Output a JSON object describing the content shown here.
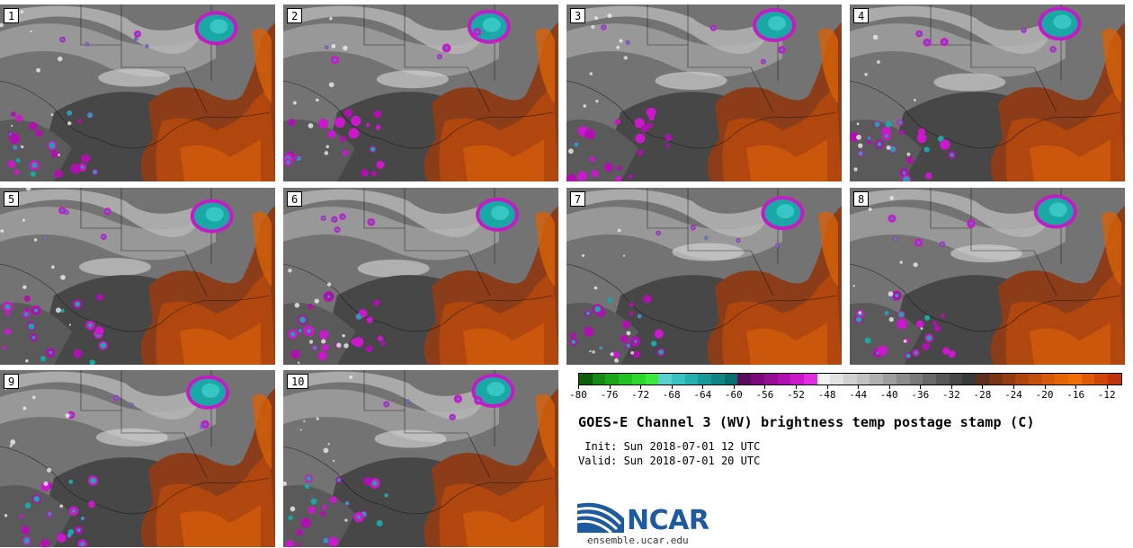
{
  "panels": [
    {
      "label": "1"
    },
    {
      "label": "2"
    },
    {
      "label": "3"
    },
    {
      "label": "4"
    },
    {
      "label": "5"
    },
    {
      "label": "6"
    },
    {
      "label": "7"
    },
    {
      "label": "8"
    },
    {
      "label": "9"
    },
    {
      "label": "10"
    }
  ],
  "colorbar": {
    "min": -80,
    "max": -10,
    "ticks": [
      "-80",
      "-76",
      "-72",
      "-68",
      "-64",
      "-60",
      "-56",
      "-52",
      "-48",
      "-44",
      "-40",
      "-36",
      "-32",
      "-28",
      "-24",
      "-20",
      "-16",
      "-12"
    ],
    "colors": [
      "#0a5e0a",
      "#138a13",
      "#1aa51a",
      "#22c022",
      "#2bd82b",
      "#3fe83f",
      "#59d2cf",
      "#38c2c0",
      "#23b0ae",
      "#169a99",
      "#0e8584",
      "#07706f",
      "#5c0a5c",
      "#7a0a7a",
      "#950d95",
      "#b110b1",
      "#cc18cc",
      "#e22ce2",
      "#f2f2f2",
      "#e2e2e2",
      "#d2d2d2",
      "#c2c2c2",
      "#b0b0b0",
      "#9e9e9e",
      "#8c8c8c",
      "#7a7a7a",
      "#686868",
      "#575757",
      "#474747",
      "#3a3a3a",
      "#5c2f1e",
      "#7a3416",
      "#963c12",
      "#ae450f",
      "#c44e0c",
      "#d65a08",
      "#e46406",
      "#ee7004",
      "#e05a06",
      "#d14407",
      "#c03308"
    ]
  },
  "title": "GOES-E Channel 3 (WV) brightness temp postage stamp (C)",
  "init_text": " Init: Sun 2018-07-01 12 UTC",
  "valid_text": "Valid: Sun 2018-07-01 20 UTC",
  "logo": {
    "name": "NCAR",
    "url_text": "ensemble.ucar.edu"
  }
}
